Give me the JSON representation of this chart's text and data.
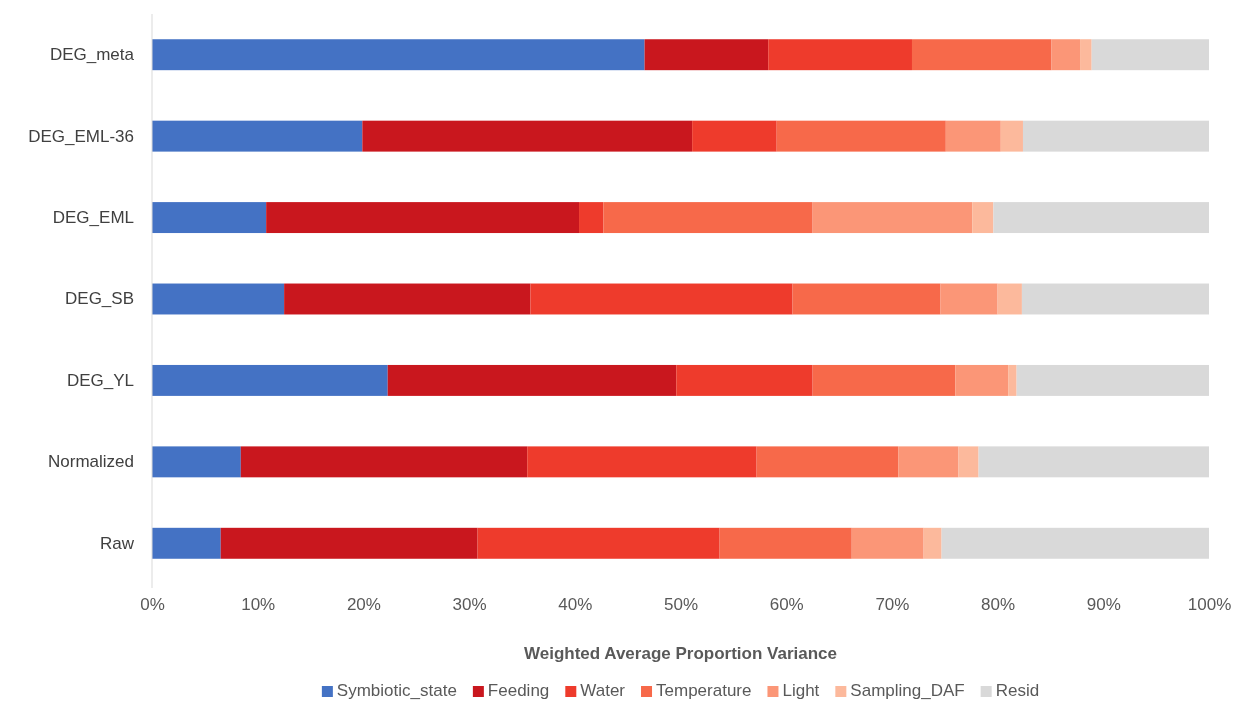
{
  "chart_data": {
    "type": "bar",
    "orientation": "horizontal",
    "stacked": true,
    "xlabel": "Weighted Average Proportion Variance",
    "categories": [
      "DEG_meta",
      "DEG_EML-36",
      "DEG_EML",
      "DEG_SB",
      "DEG_YL",
      "Normalized",
      "Raw"
    ],
    "series": [
      {
        "name": "Symbiotic_state",
        "color": "#4472c4",
        "values": [
          46.6,
          19.9,
          10.8,
          12.5,
          22.3,
          8.4,
          6.5
        ]
      },
      {
        "name": "Feeding",
        "color": "#c9171e",
        "values": [
          11.7,
          31.2,
          29.6,
          23.3,
          27.3,
          27.1,
          24.3
        ]
      },
      {
        "name": "Water",
        "color": "#ee3b2c",
        "values": [
          13.6,
          8.0,
          2.3,
          24.8,
          12.9,
          21.7,
          22.9
        ]
      },
      {
        "name": "Temperature",
        "color": "#f7694a",
        "values": [
          13.2,
          16.0,
          19.8,
          14.0,
          13.5,
          13.4,
          12.5
        ]
      },
      {
        "name": "Light",
        "color": "#fb9677",
        "values": [
          2.7,
          5.2,
          15.1,
          5.4,
          5.0,
          5.7,
          6.8
        ]
      },
      {
        "name": "Sampling_DAF",
        "color": "#fcb99c",
        "values": [
          1.1,
          2.1,
          2.0,
          2.3,
          0.8,
          1.9,
          1.7
        ]
      },
      {
        "name": "Resid",
        "color": "#d9d9d9",
        "values": [
          11.1,
          17.6,
          20.4,
          17.7,
          18.2,
          21.8,
          25.3
        ]
      }
    ],
    "xlim": [
      0,
      100
    ],
    "xticks": [
      {
        "value": 0,
        "label": "0%"
      },
      {
        "value": 10,
        "label": "10%"
      },
      {
        "value": 20,
        "label": "20%"
      },
      {
        "value": 30,
        "label": "30%"
      },
      {
        "value": 40,
        "label": "40%"
      },
      {
        "value": 50,
        "label": "50%"
      },
      {
        "value": 60,
        "label": "60%"
      },
      {
        "value": 70,
        "label": "70%"
      },
      {
        "value": 80,
        "label": "80%"
      },
      {
        "value": 90,
        "label": "90%"
      },
      {
        "value": 100,
        "label": "100%"
      }
    ],
    "grid": false,
    "legend": "bottom"
  }
}
